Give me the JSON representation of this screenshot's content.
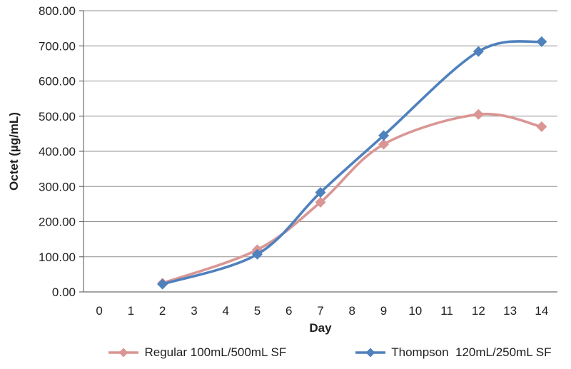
{
  "page": {
    "background": "#ffffff"
  },
  "colors": {
    "grid": "#929292",
    "axis": "#6e6e6e",
    "tick_text": "#1f1f1f",
    "title_text": "#1f1f1f"
  },
  "chart_data": {
    "type": "line",
    "title": "",
    "xlabel": "Day",
    "ylabel": "Octet (µg/mL)",
    "x_categories": [
      "0",
      "1",
      "2",
      "3",
      "4",
      "5",
      "6",
      "7",
      "8",
      "9",
      "10",
      "11",
      "12",
      "13",
      "14"
    ],
    "y_tick_labels": [
      "0.00",
      "100.00",
      "200.00",
      "300.00",
      "400.00",
      "500.00",
      "600.00",
      "700.00",
      "800.00"
    ],
    "ylim": [
      0,
      800
    ],
    "grid": "horizontal",
    "legend_position": "bottom",
    "line_style": "smooth",
    "marker": "diamond",
    "series": [
      {
        "name": "Regular 100mL/500mL SF",
        "color": "#d99694",
        "x_days": [
          2,
          5,
          7,
          9,
          12,
          14
        ],
        "values": [
          25,
          120,
          255,
          420,
          505,
          470
        ]
      },
      {
        "name": "Thompson  120mL/250mL SF",
        "color": "#4f81bd",
        "x_days": [
          2,
          5,
          7,
          9,
          12,
          14
        ],
        "values": [
          22,
          107,
          283,
          445,
          684,
          712
        ]
      }
    ]
  }
}
